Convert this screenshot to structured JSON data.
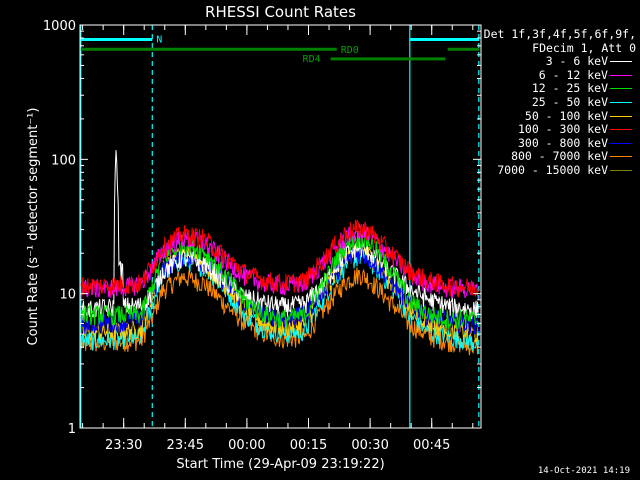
{
  "chart_data": {
    "type": "line",
    "title": "RHESSI Count Rates",
    "xlabel": "Start Time (29-Apr-09 23:19:22)",
    "ylabel": "Count Rate (s⁻¹ detector segment⁻¹)",
    "yscale": "log",
    "ylim": [
      1,
      1000
    ],
    "xlim": [
      "23:19:22",
      "00:57:00"
    ],
    "x_ticks": [
      "23:30",
      "23:45",
      "00:00",
      "00:15",
      "00:30",
      "00:45"
    ],
    "y_ticks": [
      "1",
      "10",
      "100",
      "1000"
    ],
    "x_tick_times": [
      "23:30",
      "23:45",
      "00:00",
      "00:15",
      "00:30",
      "00:45"
    ],
    "grid": false,
    "legend_position": "right",
    "legend_header": [
      "Det 1f,3f,4f,5f,6f,9f,",
      "FDecim 1, Att 0"
    ],
    "x_minutes": [
      0,
      5,
      10,
      15,
      18,
      20,
      25,
      30,
      35,
      40,
      45,
      50,
      55,
      60,
      65,
      68,
      70,
      75,
      80,
      85,
      90,
      94,
      97
    ],
    "series": [
      {
        "name": "3 - 6 keV",
        "color": "#ffffff",
        "values": [
          7.5,
          7.8,
          8.0,
          8.2,
          10.5,
          14.5,
          18.5,
          17.0,
          12.5,
          9.5,
          8.5,
          8.0,
          8.5,
          12.5,
          20.0,
          22.0,
          21.0,
          15.0,
          11.0,
          9.0,
          8.0,
          7.8,
          7.6
        ]
      },
      {
        "name": "6 - 12 keV",
        "color": "#ff00ff",
        "values": [
          11.0,
          11.0,
          11.0,
          12.0,
          16.0,
          21.0,
          26.0,
          24.0,
          18.0,
          13.5,
          12.0,
          11.5,
          12.0,
          18.0,
          27.0,
          29.0,
          28.0,
          20.0,
          14.0,
          12.0,
          11.0,
          11.0,
          10.5
        ]
      },
      {
        "name": "12 - 25 keV",
        "color": "#00e000",
        "values": [
          7.0,
          7.0,
          7.0,
          7.0,
          12.0,
          18.0,
          24.0,
          21.0,
          14.0,
          9.0,
          7.0,
          6.5,
          7.0,
          13.0,
          24.0,
          26.0,
          25.0,
          16.0,
          9.0,
          7.0,
          6.5,
          6.5,
          6.3
        ]
      },
      {
        "name": "25 - 50 keV",
        "color": "#00ffff",
        "values": [
          4.5,
          4.5,
          4.6,
          4.8,
          9.0,
          14.0,
          18.0,
          16.0,
          11.0,
          7.0,
          5.5,
          5.0,
          5.3,
          10.0,
          17.0,
          19.0,
          18.0,
          12.0,
          7.0,
          5.2,
          4.8,
          4.5,
          4.3
        ]
      },
      {
        "name": "50 - 100 keV",
        "color": "#ffcc00",
        "values": [
          5.2,
          5.2,
          5.3,
          5.5,
          10.0,
          15.0,
          20.0,
          17.0,
          12.0,
          8.0,
          6.0,
          5.6,
          6.0,
          11.0,
          19.0,
          21.0,
          20.0,
          13.0,
          8.0,
          6.0,
          5.5,
          5.2,
          5.0
        ]
      },
      {
        "name": "100 - 300 keV",
        "color": "#ff0000",
        "values": [
          11.5,
          11.5,
          11.7,
          12.0,
          17.0,
          22.0,
          28.0,
          26.0,
          19.0,
          14.5,
          12.5,
          12.0,
          12.5,
          19.0,
          29.0,
          31.0,
          30.0,
          21.0,
          15.0,
          12.5,
          11.5,
          11.3,
          11.0
        ]
      },
      {
        "name": "300 - 800 keV",
        "color": "#0000ff",
        "values": [
          6.0,
          6.0,
          6.2,
          6.5,
          10.5,
          15.0,
          19.0,
          17.0,
          12.5,
          8.5,
          7.0,
          6.5,
          7.0,
          11.5,
          18.0,
          20.0,
          19.0,
          13.0,
          8.5,
          6.8,
          6.2,
          6.0,
          5.8
        ]
      },
      {
        "name": "800 - 7000 keV",
        "color": "#ff8800",
        "values": [
          4.2,
          4.3,
          4.4,
          4.5,
          7.0,
          10.5,
          13.5,
          12.0,
          8.5,
          6.0,
          5.0,
          4.6,
          4.8,
          8.0,
          12.5,
          14.0,
          13.0,
          9.0,
          6.0,
          4.8,
          4.4,
          4.2,
          4.0
        ]
      },
      {
        "name": "7000 - 15000 keV",
        "color": "#808000",
        "values": []
      }
    ],
    "spike": {
      "x_minute": 8.8,
      "peak": 125
    },
    "vertical_lines": [
      {
        "x_minute": 0.2,
        "color": "#00ffff",
        "style": "solid"
      },
      {
        "x_minute": 17.6,
        "color": "#00ffff",
        "style": "dashed"
      },
      {
        "x_minute": 80.3,
        "color": "#00ffff",
        "style": "solid"
      },
      {
        "x_minute": 97.1,
        "color": "#00ffff",
        "style": "dashed"
      }
    ],
    "state_bars": [
      {
        "label": "N",
        "color": "#00ffff",
        "y": 780,
        "segments": [
          [
            0.2,
            17.6
          ],
          [
            80.3,
            97.2
          ]
        ]
      },
      {
        "label": "RD0",
        "color": "#008000",
        "y": 660,
        "segments": [
          [
            0.2,
            62.5
          ],
          [
            89.5,
            97.2
          ]
        ]
      },
      {
        "label": "RD4",
        "color": "#008000",
        "y": 560,
        "segments": [
          [
            61.0,
            89.0
          ]
        ]
      }
    ]
  },
  "timestamp": "14-Oct-2021 14:19"
}
